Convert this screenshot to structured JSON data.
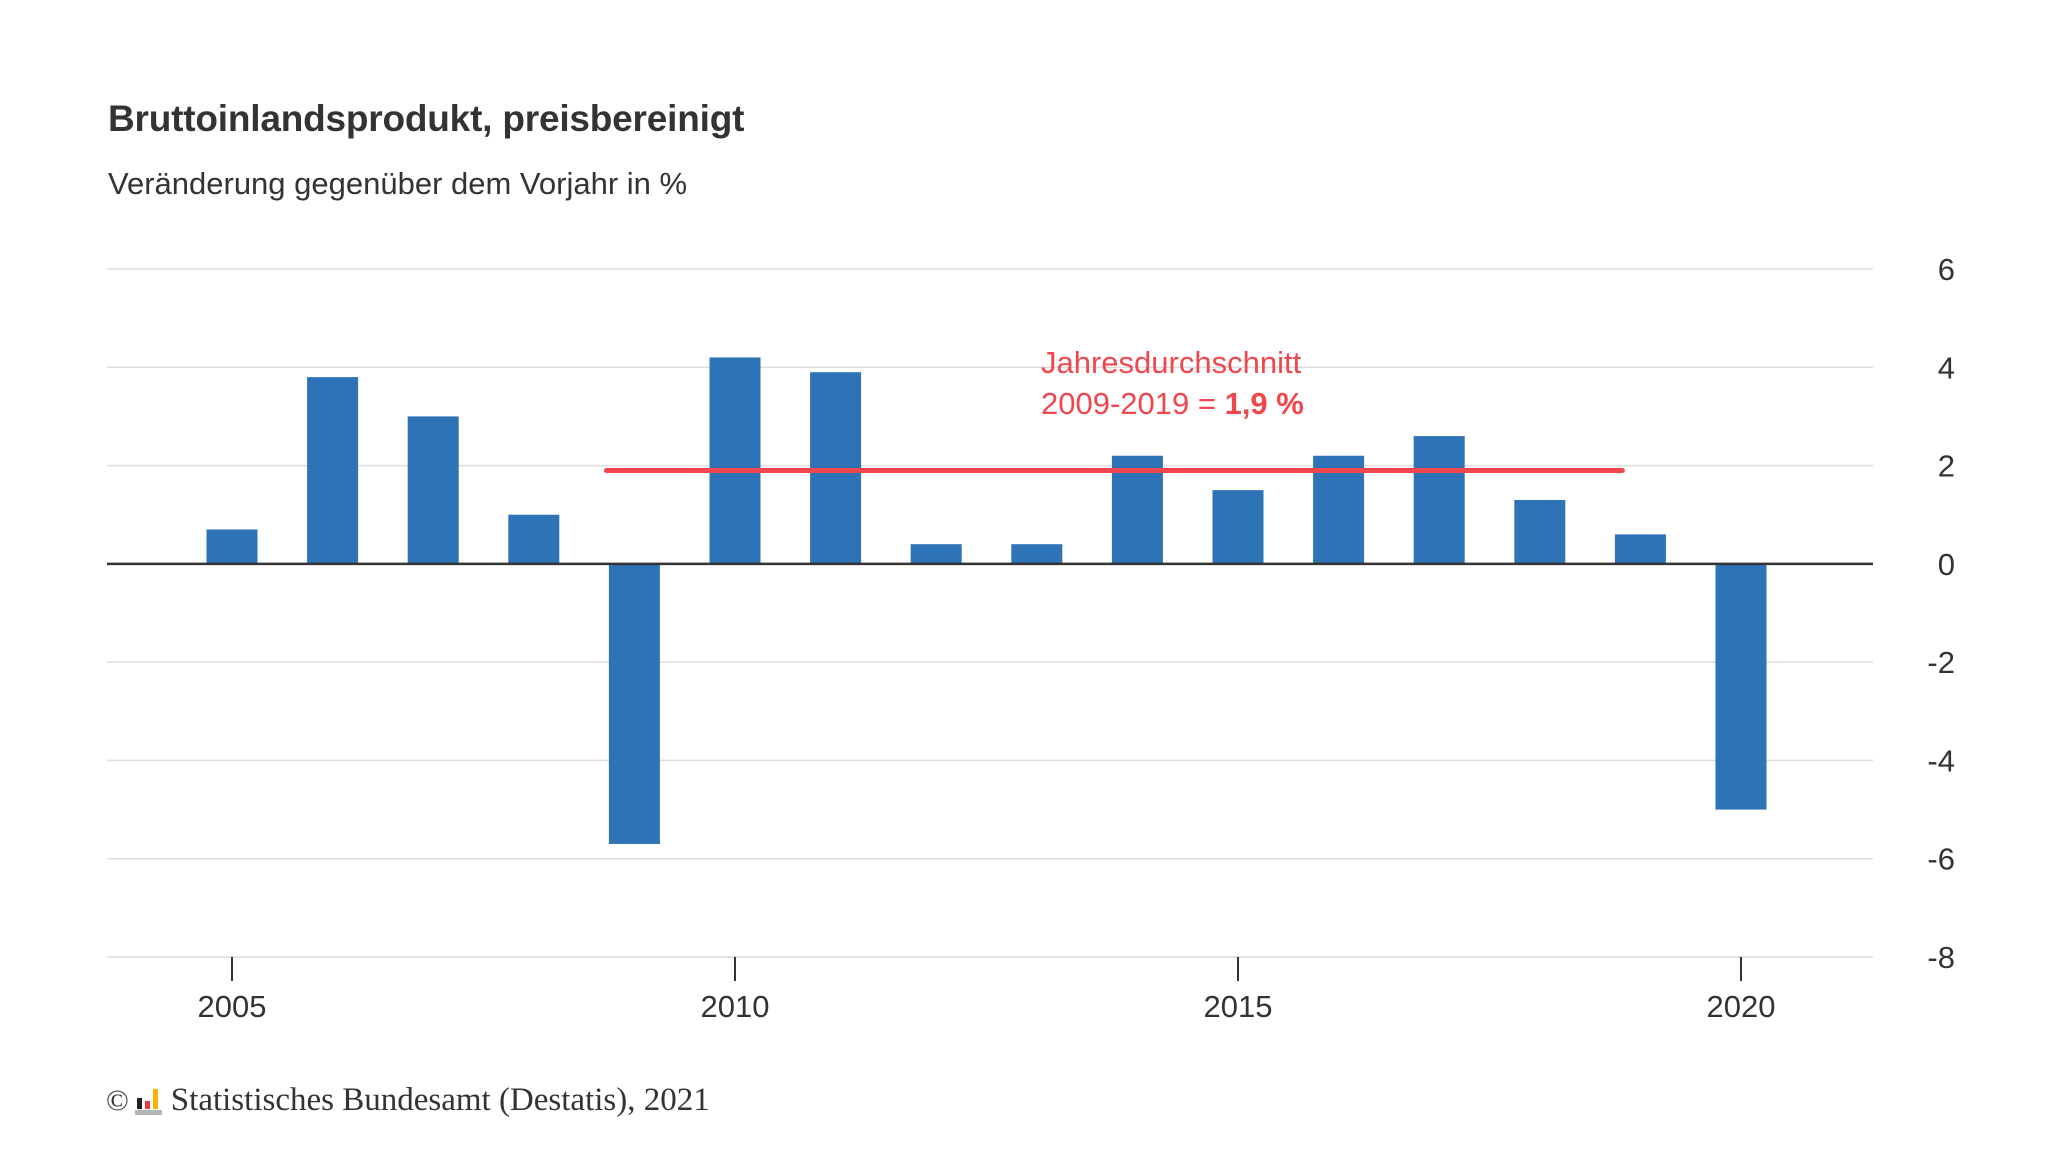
{
  "colors": {
    "bar": "#2e73b6",
    "average_line": "#f0474f",
    "annotation": "#f0474f",
    "grid": "#dddddd",
    "zero_line": "#333333",
    "text": "#333333"
  },
  "footer": {
    "copyright_symbol": "©",
    "logo_icon": "destatis-logo-icon",
    "text": "Statistisches Bundesamt (Destatis), 2021"
  },
  "chart_data": {
    "type": "bar",
    "title": "Bruttoinlandsprodukt, preisbereinigt",
    "subtitle": "Veränderung gegenüber dem Vorjahr in %",
    "xlabel": "",
    "ylabel": "",
    "x": [
      2005,
      2006,
      2007,
      2008,
      2009,
      2010,
      2011,
      2012,
      2013,
      2014,
      2015,
      2016,
      2017,
      2018,
      2019,
      2020
    ],
    "values": [
      0.7,
      3.8,
      3.0,
      1.0,
      -5.7,
      4.2,
      3.9,
      0.4,
      0.4,
      2.2,
      1.5,
      2.2,
      2.6,
      1.3,
      0.6,
      -5.0
    ],
    "xlim": [
      2004,
      2021.25
    ],
    "ylim": [
      -8,
      6
    ],
    "x_ticks": [
      "2005",
      "2010",
      "2015",
      "2020"
    ],
    "y_ticks": [
      "6",
      "4",
      "2",
      "0",
      "-2",
      "-4",
      "-6",
      "-8"
    ],
    "y_axis_position": "right",
    "grid": true,
    "reference_line": {
      "label_line1": "Jahresdurchschnitt",
      "label_line2_prefix": "2009-2019 = ",
      "label_line2_value": "1,9 %",
      "value": 1.9,
      "x_start": 2009,
      "x_end": 2019
    }
  }
}
